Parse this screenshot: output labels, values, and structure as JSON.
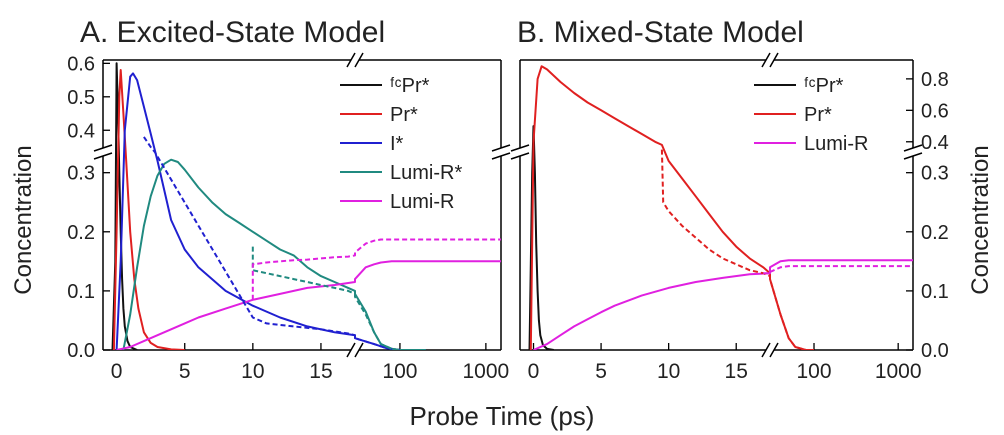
{
  "figure": {
    "xlabel": "Probe Time (ps)",
    "ylabel": "Concentration"
  },
  "chart_data": [
    {
      "id": "A",
      "type": "line",
      "title": "A. Excited-State Model",
      "ylabel": "Concentration",
      "xlabel": "Probe Time (ps)",
      "x_segments": [
        {
          "scale": "linear",
          "range": [
            -1,
            17.5
          ],
          "ticks": [
            0,
            5,
            10,
            15
          ],
          "tick_labels": [
            "0",
            "5",
            "10",
            "15"
          ]
        },
        {
          "scale": "log",
          "range": [
            30,
            1500
          ],
          "ticks": [
            100,
            1000
          ],
          "tick_labels": [
            "100",
            "1000"
          ]
        }
      ],
      "y_segments": [
        {
          "scale": "linear",
          "range": [
            0,
            0.335
          ],
          "ticks": [
            0.0,
            0.1,
            0.2,
            0.3
          ],
          "tick_labels": [
            "0.0",
            "0.1",
            "0.2",
            "0.3"
          ]
        },
        {
          "scale": "linear",
          "range": [
            0.335,
            0.61
          ],
          "ticks": [
            0.4,
            0.5,
            0.6
          ],
          "tick_labels": [
            "0.4",
            "0.5",
            "0.6"
          ]
        }
      ],
      "y_axis_side": "left",
      "legend_position": "top-right",
      "series": [
        {
          "name": "ᶠᶜPr*",
          "color": "#111111",
          "style": "solid",
          "x": [
            -0.3,
            -0.1,
            0,
            0.1,
            0.2,
            0.3,
            0.4,
            0.5,
            0.6,
            0.8,
            1.0,
            1.5
          ],
          "y": [
            0,
            0.15,
            0.6,
            0.45,
            0.3,
            0.2,
            0.12,
            0.07,
            0.04,
            0.015,
            0.005,
            0
          ]
        },
        {
          "name": "Pr*",
          "color": "#e02020",
          "style": "solid",
          "x": [
            -0.2,
            0,
            0.2,
            0.3,
            0.5,
            0.7,
            1.0,
            1.3,
            1.6,
            2.0,
            2.5,
            3.0,
            4.0,
            5.0
          ],
          "y": [
            0,
            0.2,
            0.5,
            0.58,
            0.45,
            0.32,
            0.2,
            0.12,
            0.07,
            0.03,
            0.012,
            0.005,
            0.001,
            0
          ]
        },
        {
          "name": "I*",
          "color": "#2020d0",
          "style": "solid",
          "x": [
            0,
            0.3,
            0.6,
            1.0,
            1.2,
            1.5,
            2.0,
            2.5,
            3.0,
            3.5,
            4.0,
            5.0,
            6.0,
            8.0,
            10.0,
            12.0,
            14.0,
            16.0,
            17.5,
            30,
            50,
            70,
            100,
            200
          ],
          "y": [
            0,
            0.15,
            0.4,
            0.56,
            0.57,
            0.55,
            0.47,
            0.39,
            0.32,
            0.27,
            0.22,
            0.17,
            0.14,
            0.1,
            0.075,
            0.055,
            0.04,
            0.03,
            0.025,
            0.02,
            0.01,
            0.003,
            0,
            0
          ]
        },
        {
          "name": "Lumi-R*",
          "color": "#208a80",
          "style": "solid",
          "x": [
            0.5,
            1.0,
            1.5,
            2.0,
            2.5,
            3.0,
            3.5,
            4.0,
            4.5,
            5.0,
            6.0,
            7.0,
            8.0,
            9.0,
            10.0,
            11.0,
            12.0,
            13.0,
            14.0,
            15.0,
            16.0,
            17.0,
            17.5,
            30,
            40,
            50,
            60,
            80,
            100,
            200
          ],
          "y": [
            0,
            0.06,
            0.14,
            0.21,
            0.26,
            0.295,
            0.315,
            0.322,
            0.318,
            0.305,
            0.275,
            0.25,
            0.23,
            0.215,
            0.2,
            0.185,
            0.17,
            0.16,
            0.14,
            0.125,
            0.115,
            0.105,
            0.1,
            0.095,
            0.065,
            0.03,
            0.01,
            0.002,
            0,
            0
          ]
        },
        {
          "name": "Lumi-R",
          "color": "#e020e0",
          "style": "solid",
          "x": [
            0,
            1.0,
            2.0,
            3.0,
            4.0,
            5.0,
            6.0,
            8.0,
            10.0,
            12.0,
            14.0,
            16.0,
            17.5,
            30,
            40,
            50,
            60,
            80,
            100,
            200,
            500,
            1500
          ],
          "y": [
            0,
            0.005,
            0.015,
            0.025,
            0.035,
            0.045,
            0.055,
            0.07,
            0.085,
            0.095,
            0.105,
            0.11,
            0.115,
            0.12,
            0.14,
            0.145,
            0.148,
            0.15,
            0.15,
            0.15,
            0.15,
            0.15
          ]
        },
        {
          "color": "#2020d0",
          "style": "dashed",
          "x": [
            2.0,
            2.5,
            2.8,
            10.0,
            11.0,
            13.0,
            15.0,
            17.0,
            17.5,
            30,
            50,
            70,
            100
          ],
          "y": [
            0.38,
            0.35,
            0.335,
            0.055,
            0.045,
            0.04,
            0.035,
            0.028,
            0.025,
            0.02,
            0.01,
            0.003,
            0
          ]
        },
        {
          "color": "#208a80",
          "style": "dashed",
          "x": [
            10.0,
            10.0,
            11.0,
            12.0,
            13.0,
            14.0,
            15.0,
            16.0,
            17.0,
            17.5,
            30,
            40,
            50,
            60,
            80,
            100
          ],
          "y": [
            0.175,
            0.135,
            0.13,
            0.125,
            0.12,
            0.115,
            0.11,
            0.105,
            0.1,
            0.095,
            0.09,
            0.06,
            0.03,
            0.01,
            0.002,
            0
          ]
        },
        {
          "color": "#e020e0",
          "style": "dashed",
          "x": [
            10.0,
            10.0,
            11.0,
            12.0,
            13.0,
            14.0,
            15.0,
            16.0,
            17.0,
            17.5,
            30,
            40,
            50,
            60,
            80,
            100,
            200,
            500,
            1500
          ],
          "y": [
            0.085,
            0.145,
            0.148,
            0.15,
            0.152,
            0.153,
            0.155,
            0.157,
            0.158,
            0.16,
            0.165,
            0.18,
            0.185,
            0.187,
            0.187,
            0.187,
            0.187,
            0.187,
            0.187
          ]
        }
      ]
    },
    {
      "id": "B",
      "type": "line",
      "title": "B. Mixed-State Model",
      "ylabel": "Concentration",
      "xlabel": "Probe Time (ps)",
      "x_segments": [
        {
          "scale": "linear",
          "range": [
            -1,
            17.5
          ],
          "ticks": [
            0,
            5,
            10,
            15
          ],
          "tick_labels": [
            "0",
            "5",
            "10",
            "15"
          ]
        },
        {
          "scale": "log",
          "range": [
            30,
            1500
          ],
          "ticks": [
            100,
            1000
          ],
          "tick_labels": [
            "100",
            "1000"
          ]
        }
      ],
      "y_segments": [
        {
          "scale": "linear",
          "range": [
            0,
            0.335
          ],
          "ticks": [
            0.0,
            0.1,
            0.2,
            0.3
          ],
          "tick_labels": [
            "0.0",
            "0.1",
            "0.2",
            "0.3"
          ]
        },
        {
          "scale": "linear",
          "range": [
            0.335,
            0.92
          ],
          "ticks": [
            0.4,
            0.6,
            0.8
          ],
          "tick_labels": [
            "0.4",
            "0.6",
            "0.8"
          ]
        }
      ],
      "y_axis_side": "right",
      "legend_position": "top-right",
      "series": [
        {
          "name": "ᶠᶜPr*",
          "color": "#111111",
          "style": "solid",
          "x": [
            -0.3,
            -0.1,
            0,
            0.1,
            0.2,
            0.3,
            0.4,
            0.5,
            0.7,
            1.0,
            1.5
          ],
          "y": [
            0,
            0.3,
            0.5,
            0.3,
            0.18,
            0.1,
            0.05,
            0.025,
            0.008,
            0.002,
            0
          ]
        },
        {
          "name": "Pr*",
          "color": "#e02020",
          "style": "solid",
          "x": [
            -0.2,
            0,
            0.3,
            0.6,
            1.0,
            2.0,
            3.0,
            4.0,
            5.0,
            6.0,
            7.0,
            8.0,
            9.0,
            9.5,
            10.0,
            11.0,
            12.0,
            13.0,
            14.0,
            15.0,
            16.0,
            17.0,
            17.5,
            30,
            40,
            50,
            60,
            80,
            100
          ],
          "y": [
            0,
            0.4,
            0.8,
            0.88,
            0.86,
            0.78,
            0.71,
            0.65,
            0.6,
            0.55,
            0.5,
            0.45,
            0.4,
            0.38,
            0.32,
            0.29,
            0.26,
            0.23,
            0.2,
            0.175,
            0.155,
            0.14,
            0.13,
            0.12,
            0.06,
            0.02,
            0.005,
            0,
            0
          ]
        },
        {
          "name": "Lumi-R",
          "color": "#e020e0",
          "style": "solid",
          "x": [
            0,
            1.0,
            2.0,
            3.0,
            4.0,
            5.0,
            6.0,
            8.0,
            10.0,
            12.0,
            14.0,
            16.0,
            17.5,
            30,
            40,
            50,
            60,
            80,
            100,
            200,
            500,
            1500
          ],
          "y": [
            0,
            0.01,
            0.025,
            0.04,
            0.052,
            0.064,
            0.075,
            0.092,
            0.105,
            0.115,
            0.122,
            0.128,
            0.13,
            0.14,
            0.15,
            0.152,
            0.152,
            0.152,
            0.152,
            0.152,
            0.152,
            0.152
          ]
        },
        {
          "color": "#e02020",
          "style": "dashed",
          "x": [
            9.5,
            9.6,
            10.0,
            11.0,
            12.0,
            13.0,
            14.0,
            15.0,
            16.0,
            17.0,
            17.5,
            30,
            40,
            50,
            60,
            80,
            100
          ],
          "y": [
            0.35,
            0.25,
            0.235,
            0.21,
            0.19,
            0.17,
            0.155,
            0.145,
            0.135,
            0.13,
            0.125,
            0.12,
            0.06,
            0.02,
            0.005,
            0,
            0
          ]
        },
        {
          "color": "#e020e0",
          "style": "dashed",
          "x": [
            17.0,
            17.5,
            30,
            40,
            50,
            60,
            80,
            100,
            200,
            500,
            1500
          ],
          "y": [
            0.13,
            0.13,
            0.132,
            0.14,
            0.142,
            0.142,
            0.142,
            0.142,
            0.142,
            0.142,
            0.142
          ]
        }
      ]
    }
  ]
}
